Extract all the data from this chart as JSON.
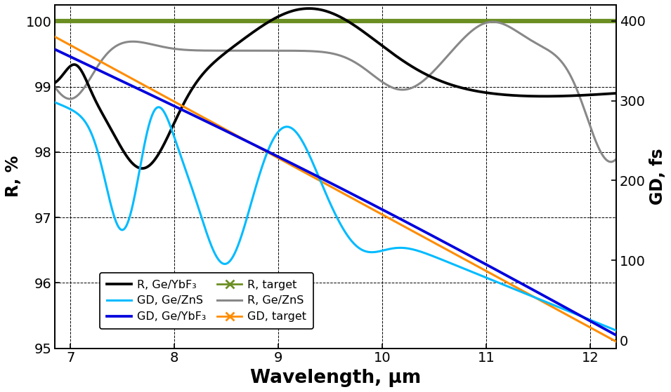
{
  "title": "",
  "xlabel": "Wavelength, μm",
  "ylabel_left": "R, %",
  "ylabel_right": "GD, fs",
  "xlim": [
    6.85,
    12.25
  ],
  "ylim_left": [
    95.0,
    100.25
  ],
  "ylim_right": [
    -10,
    420
  ],
  "xticks": [
    7,
    8,
    9,
    10,
    11,
    12
  ],
  "yticks_left": [
    95,
    96,
    97,
    98,
    99,
    100
  ],
  "yticks_right": [
    0,
    100,
    200,
    300,
    400
  ],
  "background_color": "#ffffff",
  "colors": {
    "R_GeYbF3": "#000000",
    "GD_GeYbF3": "#0000dd",
    "R_GeZnS": "#888888",
    "GD_GeZnS": "#00bbff",
    "R_target": "#6b8e23",
    "GD_target": "#ff8c00"
  },
  "legend_labels": {
    "R_GeYbF3": "R, Ge/YbF₃",
    "GD_GeYbF3": "GD, Ge/YbF₃",
    "R_GeZnS": "R, Ge/ZnS",
    "GD_GeZnS": "GD, Ge/ZnS",
    "R_target": "R, target",
    "GD_target": "GD, target"
  }
}
